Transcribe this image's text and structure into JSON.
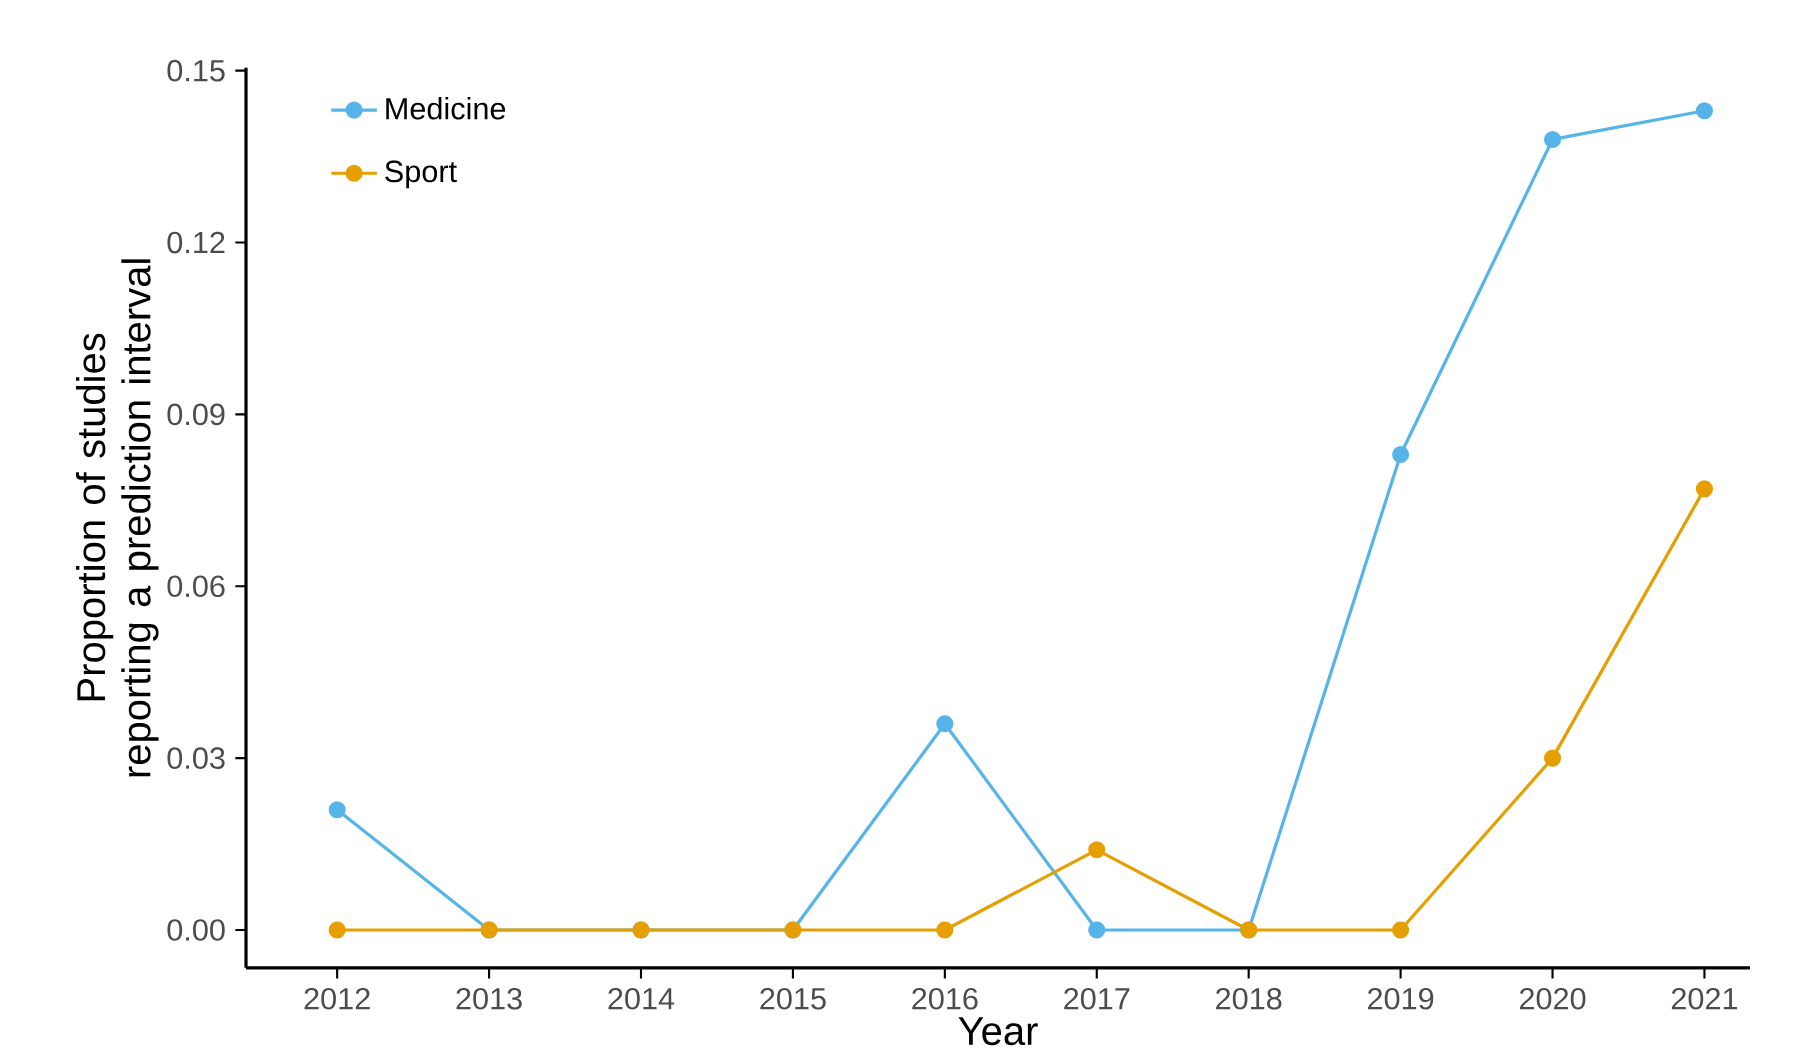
{
  "chart_data": {
    "type": "line",
    "xlabel": "Year",
    "ylabel": "Proportion of studies reporting a prediction interval",
    "x": [
      2012,
      2013,
      2014,
      2015,
      2016,
      2017,
      2018,
      2019,
      2020,
      2021
    ],
    "series": [
      {
        "name": "Medicine",
        "color": "#56b4e9",
        "values": [
          0.021,
          0,
          0,
          0,
          0.036,
          0,
          0,
          0.083,
          0.138,
          0.143
        ]
      },
      {
        "name": "Sport",
        "color": "#e69f00",
        "values": [
          0,
          0,
          0,
          0,
          0,
          0.014,
          0,
          0,
          0.03,
          0.077
        ]
      }
    ],
    "xlim": [
      2011.4,
      2021.3
    ],
    "ylim": [
      -0.0066,
      0.1505
    ],
    "xticks": [
      2012,
      2013,
      2014,
      2015,
      2016,
      2017,
      2018,
      2019,
      2020,
      2021
    ],
    "yticks": [
      {
        "value": 0,
        "label": "0.00"
      },
      {
        "value": 0.03,
        "label": "0.03"
      },
      {
        "value": 0.06,
        "label": "0.06"
      },
      {
        "value": 0.09,
        "label": "0.09"
      },
      {
        "value": 0.12,
        "label": "0.12"
      },
      {
        "value": 0.15,
        "label": "0.15"
      }
    ],
    "grid": false,
    "legend": "top left",
    "marker": "circle",
    "line_style": "solid"
  }
}
